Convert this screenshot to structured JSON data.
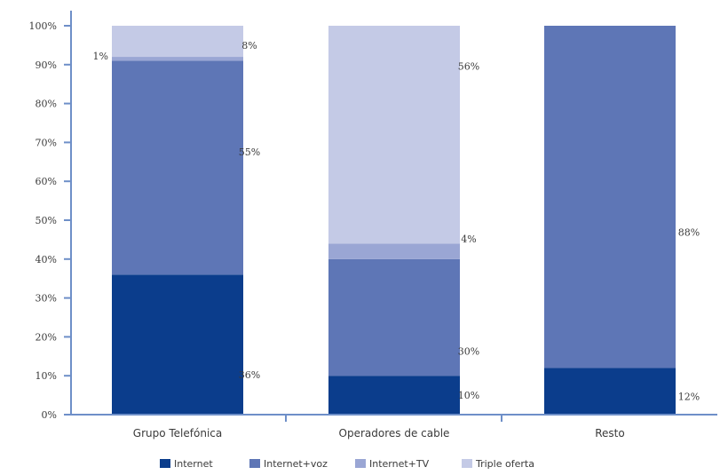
{
  "chart_data": {
    "type": "bar",
    "stacked": true,
    "percent": true,
    "categories": [
      "Grupo Telefónica",
      "Operadores de cable",
      "Resto"
    ],
    "series": [
      {
        "name": "Internet",
        "color": "#0b3d8c",
        "values": [
          36,
          10,
          12
        ]
      },
      {
        "name": "Internet+voz",
        "color": "#5e76b6",
        "values": [
          55,
          30,
          88
        ]
      },
      {
        "name": "Internet+TV",
        "color": "#9aa6d4",
        "values": [
          1,
          4,
          0
        ]
      },
      {
        "name": "Triple oferta",
        "color": "#c4cae6",
        "values": [
          8,
          56,
          0
        ]
      }
    ],
    "data_labels": [
      [
        "36%",
        "10%",
        "12%"
      ],
      [
        "55%",
        "30%",
        "88%"
      ],
      [
        "1%",
        "4%",
        ""
      ],
      [
        "8%",
        "56%",
        ""
      ]
    ],
    "yticks": [
      "0%",
      "10%",
      "20%",
      "30%",
      "40%",
      "50%",
      "60%",
      "70%",
      "80%",
      "90%",
      "100%"
    ],
    "ylim": [
      0,
      100
    ],
    "legend_position": "bottom",
    "axis_color": "#6e8fc8",
    "title": "",
    "xlabel": "",
    "ylabel": ""
  }
}
